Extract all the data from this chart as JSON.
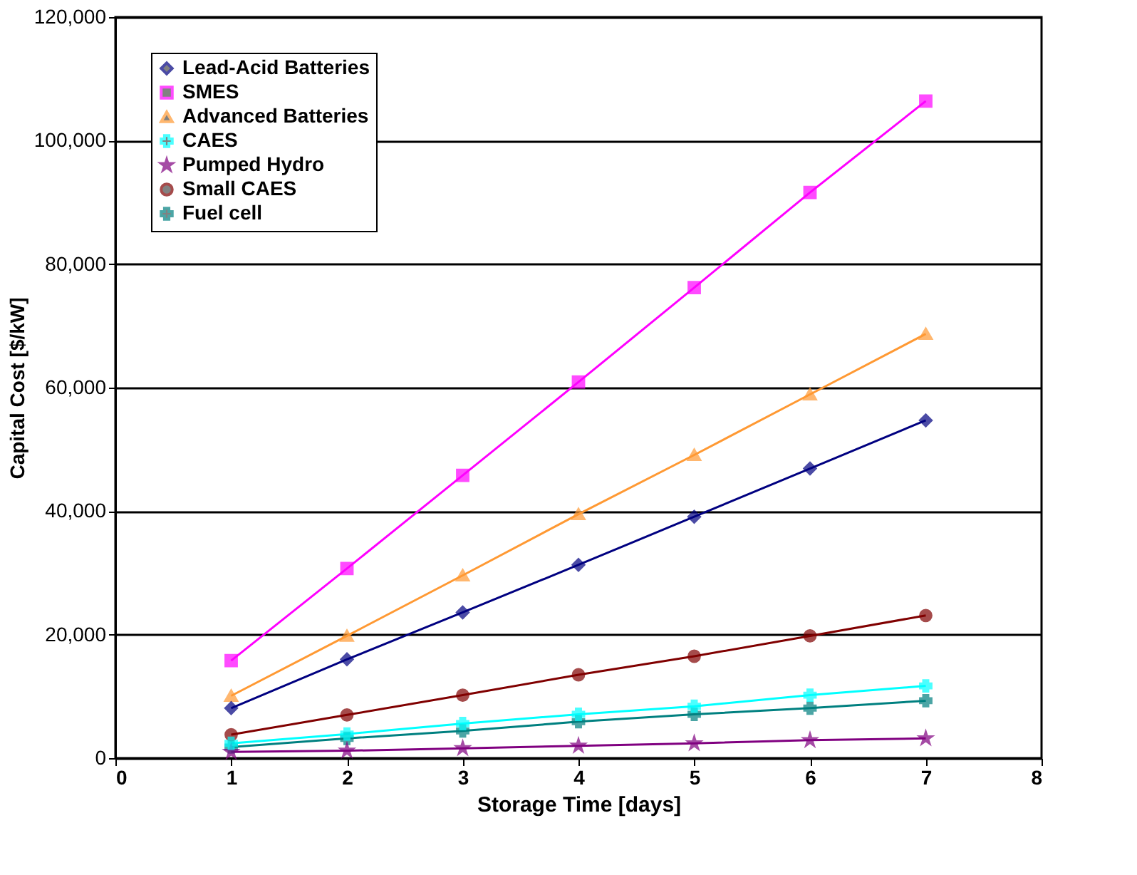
{
  "chart_data": {
    "type": "line",
    "xlabel": "Storage Time [days]",
    "ylabel": "Capital Cost [$/kW]",
    "x": [
      1,
      2,
      3,
      4,
      5,
      6,
      7
    ],
    "xlim": [
      0,
      8
    ],
    "xticks": [
      0,
      1,
      2,
      3,
      4,
      5,
      6,
      7,
      8
    ],
    "ylim": [
      0,
      120000
    ],
    "yticks": [
      {
        "value": 0,
        "label": "0"
      },
      {
        "value": 20000,
        "label": "20,000"
      },
      {
        "value": 40000,
        "label": "40,000"
      },
      {
        "value": 60000,
        "label": "60,000"
      },
      {
        "value": 80000,
        "label": "80,000"
      },
      {
        "value": 100000,
        "label": "100,000"
      },
      {
        "value": 120000,
        "label": "120,000"
      }
    ],
    "grid": "y",
    "legend": "top left",
    "line_style": "solid",
    "series": [
      {
        "name": "Lead-Acid Batteries",
        "color": "#000080",
        "marker": "diamond",
        "values": [
          8100,
          16000,
          23600,
          31300,
          39100,
          46900,
          54700
        ]
      },
      {
        "name": "SMES",
        "color": "#ff00ff",
        "marker": "square",
        "values": [
          15800,
          30700,
          45800,
          60900,
          76200,
          91600,
          106400
        ]
      },
      {
        "name": "Advanced Batteries",
        "color": "#ff9933",
        "marker": "triangle",
        "values": [
          10100,
          19800,
          29600,
          39500,
          49100,
          58900,
          68700
        ]
      },
      {
        "name": "CAES",
        "color": "#00ffff",
        "marker": "cross",
        "values": [
          2400,
          3900,
          5600,
          7100,
          8400,
          10200,
          11700
        ]
      },
      {
        "name": "Pumped Hydro",
        "color": "#800080",
        "marker": "star",
        "values": [
          1000,
          1200,
          1600,
          2000,
          2400,
          2900,
          3200
        ]
      },
      {
        "name": "Small CAES",
        "color": "#800000",
        "marker": "circle",
        "values": [
          3800,
          7000,
          10200,
          13500,
          16500,
          19800,
          23100
        ]
      },
      {
        "name": "Fuel cell",
        "color": "#008080",
        "marker": "cross",
        "values": [
          1800,
          3200,
          4400,
          5900,
          7100,
          8100,
          9300
        ]
      }
    ]
  }
}
